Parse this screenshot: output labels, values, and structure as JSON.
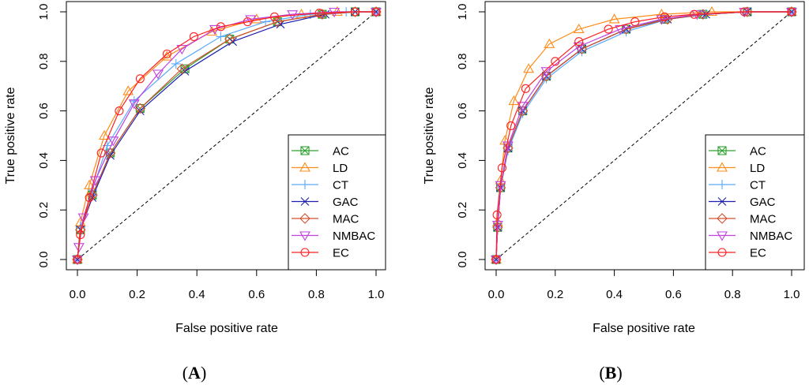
{
  "legend_order": [
    "AC",
    "LD",
    "CT",
    "GAC",
    "MAC",
    "NMBAC",
    "EC"
  ],
  "styles": {
    "AC": {
      "color": "#2ca02c",
      "marker": "boxx"
    },
    "LD": {
      "color": "#ff8c1a",
      "marker": "triangle-up"
    },
    "CT": {
      "color": "#5aa9ff",
      "marker": "plus"
    },
    "GAC": {
      "color": "#1f1fb4",
      "marker": "x"
    },
    "MAC": {
      "color": "#d2502d",
      "marker": "diamond"
    },
    "NMBAC": {
      "color": "#c040e0",
      "marker": "triangle-down"
    },
    "EC": {
      "color": "#ff2020",
      "marker": "circle"
    }
  },
  "chart_data": [
    {
      "type": "line",
      "panel_label": "(A)",
      "xlabel": "False positive rate",
      "ylabel": "True positive rate",
      "xlim": [
        0,
        1
      ],
      "ylim": [
        0,
        1
      ],
      "xticks": [
        "0.0",
        "0.2",
        "0.4",
        "0.6",
        "0.8",
        "1.0"
      ],
      "yticks": [
        "0.0",
        "0.2",
        "0.4",
        "0.6",
        "0.8",
        "1.0"
      ],
      "diagonal": true,
      "legend_position": "bottom-right",
      "series": [
        {
          "name": "AC",
          "x": [
            0,
            0.01,
            0.05,
            0.11,
            0.21,
            0.36,
            0.51,
            0.67,
            0.82,
            0.93,
            1.0
          ],
          "y": [
            0,
            0.12,
            0.26,
            0.43,
            0.61,
            0.77,
            0.89,
            0.96,
            0.99,
            1.0,
            1.0
          ]
        },
        {
          "name": "LD",
          "x": [
            0,
            0.01,
            0.04,
            0.09,
            0.17,
            0.3,
            0.45,
            0.6,
            0.75,
            0.87,
            1.0
          ],
          "y": [
            0,
            0.15,
            0.3,
            0.5,
            0.68,
            0.82,
            0.92,
            0.97,
            0.99,
            1.0,
            1.0
          ]
        },
        {
          "name": "CT",
          "x": [
            0,
            0.01,
            0.05,
            0.1,
            0.19,
            0.33,
            0.48,
            0.63,
            0.78,
            0.9,
            1.0
          ],
          "y": [
            0,
            0.13,
            0.28,
            0.46,
            0.64,
            0.79,
            0.9,
            0.96,
            0.99,
            1.0,
            1.0
          ]
        },
        {
          "name": "GAC",
          "x": [
            0,
            0.01,
            0.05,
            0.11,
            0.21,
            0.36,
            0.52,
            0.68,
            0.83,
            0.93,
            1.0
          ],
          "y": [
            0,
            0.12,
            0.25,
            0.42,
            0.6,
            0.76,
            0.88,
            0.95,
            0.99,
            1.0,
            1.0
          ]
        },
        {
          "name": "MAC",
          "x": [
            0,
            0.01,
            0.05,
            0.11,
            0.21,
            0.35,
            0.51,
            0.67,
            0.82,
            0.93,
            1.0
          ],
          "y": [
            0,
            0.12,
            0.26,
            0.43,
            0.61,
            0.77,
            0.89,
            0.96,
            0.99,
            1.0,
            1.0
          ]
        },
        {
          "name": "NMBAC",
          "x": [
            0,
            0.005,
            0.02,
            0.06,
            0.12,
            0.19,
            0.27,
            0.35,
            0.46,
            0.58,
            0.72,
            0.86,
            1.0
          ],
          "y": [
            0,
            0.05,
            0.17,
            0.32,
            0.48,
            0.63,
            0.75,
            0.85,
            0.93,
            0.97,
            0.99,
            1.0,
            1.0
          ]
        },
        {
          "name": "EC",
          "x": [
            0,
            0.01,
            0.04,
            0.08,
            0.14,
            0.21,
            0.3,
            0.39,
            0.48,
            0.57,
            0.66,
            0.81,
            0.93,
            1.0
          ],
          "y": [
            0,
            0.1,
            0.25,
            0.43,
            0.6,
            0.73,
            0.83,
            0.9,
            0.94,
            0.96,
            0.98,
            0.995,
            1.0,
            1.0
          ]
        }
      ]
    },
    {
      "type": "line",
      "panel_label": "(B)",
      "xlabel": "False positive rate",
      "ylabel": "True positive rate",
      "xlim": [
        0,
        1
      ],
      "ylim": [
        0,
        1
      ],
      "xticks": [
        "0.0",
        "0.2",
        "0.4",
        "0.6",
        "0.8",
        "1.0"
      ],
      "yticks": [
        "0.0",
        "0.2",
        "0.4",
        "0.6",
        "0.8",
        "1.0"
      ],
      "diagonal": true,
      "legend_position": "bottom-right",
      "series": [
        {
          "name": "AC",
          "x": [
            0,
            0.005,
            0.015,
            0.04,
            0.09,
            0.17,
            0.29,
            0.44,
            0.57,
            0.7,
            0.85,
            1.0
          ],
          "y": [
            0,
            0.13,
            0.29,
            0.45,
            0.6,
            0.74,
            0.85,
            0.93,
            0.97,
            0.99,
            1.0,
            1.0
          ]
        },
        {
          "name": "LD",
          "x": [
            0,
            0.005,
            0.015,
            0.03,
            0.06,
            0.11,
            0.18,
            0.28,
            0.4,
            0.56,
            0.73,
            1.0
          ],
          "y": [
            0,
            0.15,
            0.32,
            0.48,
            0.64,
            0.77,
            0.87,
            0.93,
            0.97,
            0.99,
            1.0,
            1.0
          ]
        },
        {
          "name": "CT",
          "x": [
            0,
            0.005,
            0.015,
            0.04,
            0.09,
            0.17,
            0.29,
            0.44,
            0.58,
            0.71,
            0.85,
            1.0
          ],
          "y": [
            0,
            0.13,
            0.29,
            0.44,
            0.59,
            0.73,
            0.84,
            0.92,
            0.97,
            0.99,
            1.0,
            1.0
          ]
        },
        {
          "name": "GAC",
          "x": [
            0,
            0.005,
            0.015,
            0.04,
            0.09,
            0.17,
            0.29,
            0.44,
            0.58,
            0.71,
            0.85,
            1.0
          ],
          "y": [
            0,
            0.13,
            0.29,
            0.45,
            0.6,
            0.74,
            0.85,
            0.93,
            0.97,
            0.99,
            1.0,
            1.0
          ]
        },
        {
          "name": "MAC",
          "x": [
            0,
            0.005,
            0.015,
            0.04,
            0.09,
            0.17,
            0.29,
            0.44,
            0.58,
            0.7,
            0.85,
            1.0
          ],
          "y": [
            0,
            0.13,
            0.29,
            0.45,
            0.6,
            0.74,
            0.85,
            0.93,
            0.97,
            0.99,
            1.0,
            1.0
          ]
        },
        {
          "name": "NMBAC",
          "x": [
            0,
            0.005,
            0.015,
            0.04,
            0.09,
            0.17,
            0.28,
            0.42,
            0.56,
            0.68,
            0.84,
            1.0
          ],
          "y": [
            0,
            0.14,
            0.3,
            0.46,
            0.62,
            0.76,
            0.86,
            0.93,
            0.97,
            0.99,
            1.0,
            1.0
          ]
        },
        {
          "name": "EC",
          "x": [
            0,
            0.003,
            0.02,
            0.05,
            0.1,
            0.2,
            0.28,
            0.38,
            0.47,
            0.57,
            0.67,
            0.84,
            1.0
          ],
          "y": [
            0,
            0.18,
            0.37,
            0.54,
            0.69,
            0.8,
            0.88,
            0.93,
            0.96,
            0.98,
            0.99,
            1.0,
            1.0
          ]
        }
      ]
    }
  ]
}
